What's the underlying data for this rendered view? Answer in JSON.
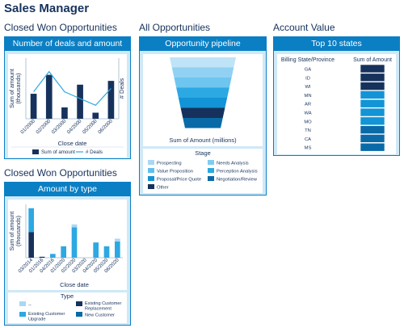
{
  "page": {
    "title": "Sales Manager"
  },
  "panels": {
    "p1": {
      "section_title": "Closed Won Opportunities",
      "header": "Number of deals and amount",
      "chart_data": {
        "type": "bar",
        "categories": [
          "01/2000",
          "02/2000",
          "03/2000",
          "04/2000",
          "05/2000",
          "06/2000"
        ],
        "series": [
          {
            "name": "Sum of amount",
            "type": "bar",
            "values": [
              33,
              58,
              15,
              45,
              8,
              50
            ]
          },
          {
            "name": "# Deals",
            "type": "line",
            "values": [
              8,
              14,
              8,
              6,
              4,
              9
            ]
          }
        ],
        "xlabel": "Close date",
        "ylabel": "Sum of amount (thousands)",
        "y2label": "# Deals",
        "y_ticks_visible": false
      }
    },
    "p2": {
      "section_title": "All Opportunities",
      "header": "Opportunity pipeline",
      "chart_data": {
        "type": "funnel",
        "xlabel": "Sum of Amount (millions)",
        "legend_title": "Stage",
        "stages": [
          {
            "name": "Prospecting",
            "color": "#a9d8f4"
          },
          {
            "name": "Needs Analysis",
            "color": "#7fccf2"
          },
          {
            "name": "Value Proposition",
            "color": "#5ec0ee"
          },
          {
            "name": "Perception Analysis",
            "color": "#2ca8e3"
          },
          {
            "name": "Proposal/Price Quote",
            "color": "#1294d6"
          },
          {
            "name": "Negotiation/Review",
            "color": "#0a6aa7"
          },
          {
            "name": "Other",
            "color": "#16325c"
          }
        ],
        "funnel_order_colors": [
          "#bfe3f7",
          "#91d1f3",
          "#6ec6f0",
          "#2ca8e3",
          "#1294d6",
          "#16325c",
          "#0a6aa7"
        ]
      }
    },
    "p3": {
      "section_title": "Account Value",
      "header": "Top 10 states",
      "chart_data": {
        "type": "table",
        "columns": [
          "Billing State/Province",
          "Sum of Amount"
        ],
        "rows": [
          "GA",
          "ID",
          "WI",
          "MN",
          "AR",
          "WA",
          "MO",
          "TN",
          "CA",
          "MS"
        ],
        "colors": [
          "#16325c",
          "#16325c",
          "#16325c",
          "#1294d6",
          "#1294d6",
          "#1294d6",
          "#1294d6",
          "#0a6aa7",
          "#0a6aa7",
          "#0a6aa7"
        ]
      }
    },
    "p4": {
      "section_title": "Closed Won Opportunities",
      "header": "Amount by type",
      "chart_data": {
        "type": "bar",
        "stacked": true,
        "categories": [
          "03/2014",
          "01/2016",
          "04/2016",
          "01/2020",
          "02/2020",
          "03/2020",
          "04/2020",
          "05/2020",
          "06/2020"
        ],
        "series": [
          {
            "name": "--",
            "color": "#a9d8f4",
            "values": [
              0,
              0,
              0,
              0,
              3,
              0,
              0,
              0,
              3
            ]
          },
          {
            "name": "Existing Customer Replacement",
            "color": "#16325c",
            "values": [
              27,
              1,
              0,
              0,
              0,
              0,
              0,
              0,
              0
            ]
          },
          {
            "name": "Existing Customer Upgrade",
            "color": "#2ca8e3",
            "values": [
              25,
              0,
              4,
              12,
              32,
              0,
              16,
              12,
              17
            ]
          },
          {
            "name": "New Customer",
            "color": "#0a6aa7",
            "values": [
              0,
              0,
              0,
              0,
              0,
              0,
              0,
              0,
              0
            ]
          }
        ],
        "xlabel": "Close date",
        "ylabel": "Sum of amount (thousands)",
        "legend_title": "Type",
        "legend_order": [
          "--",
          "Existing Customer Replacement",
          "Existing Customer Upgrade",
          "New Customer"
        ]
      }
    }
  }
}
